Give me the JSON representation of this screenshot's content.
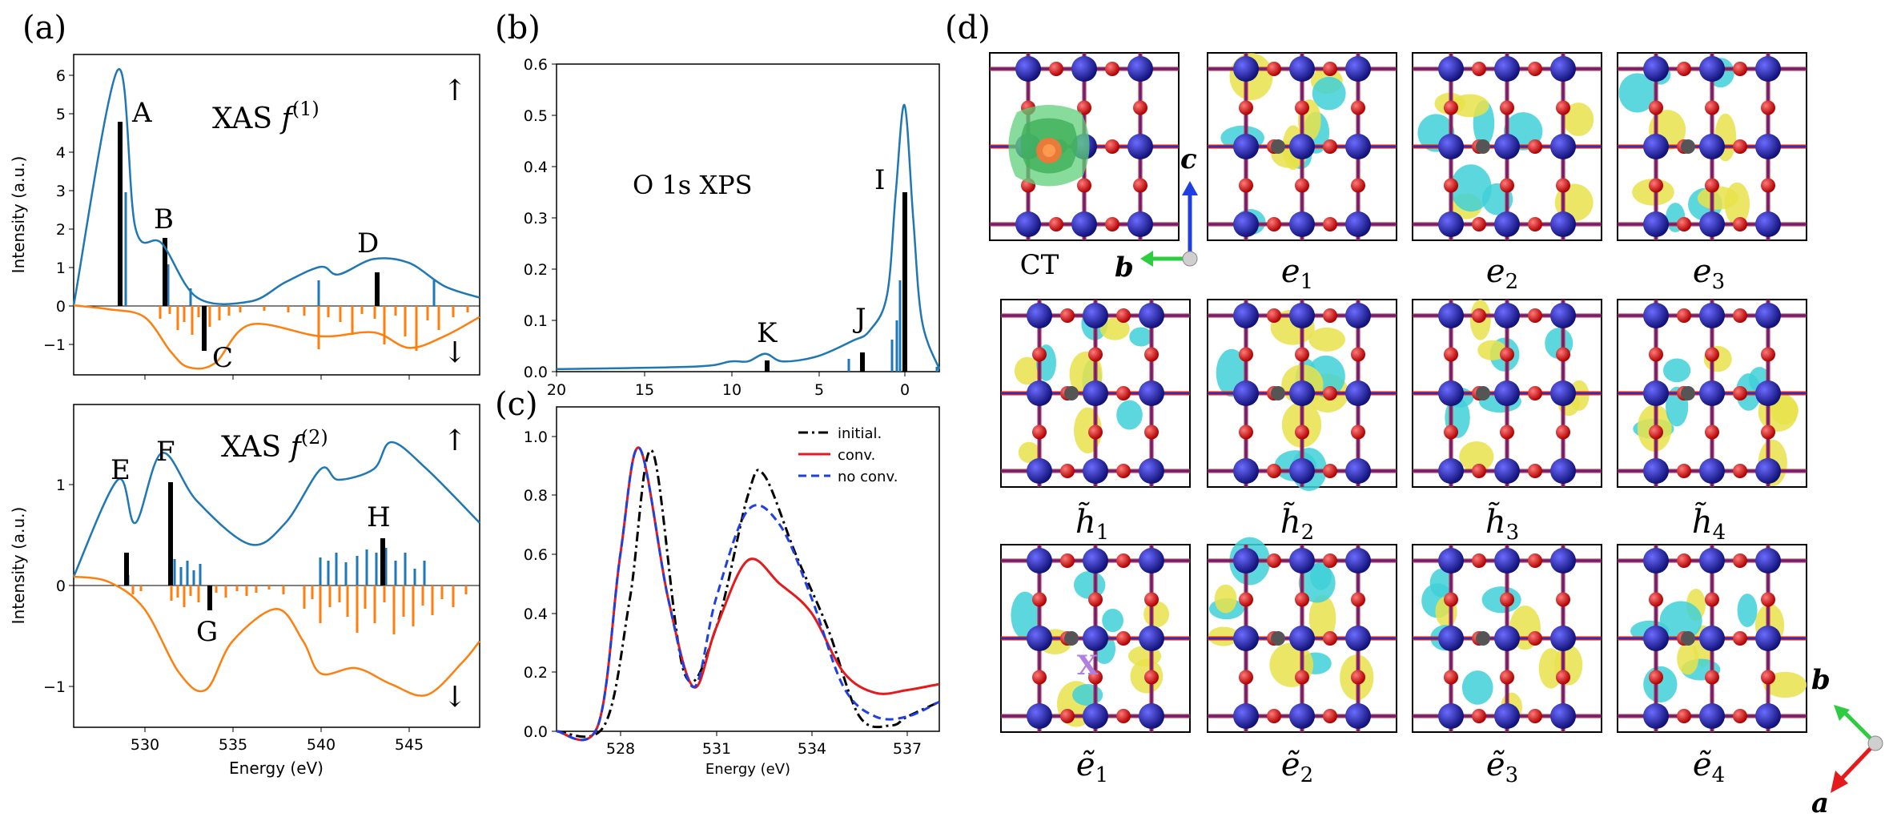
{
  "panel_labels": {
    "a": "(a)",
    "b": "(b)",
    "c": "(c)",
    "d": "(d)"
  },
  "panel_a_top": {
    "title": "XAS  f(1)",
    "arrow": "↑",
    "arrow_down": "↓",
    "peaks": [
      "A",
      "B",
      "C",
      "D"
    ],
    "ylabel": "Intensity (a.u.)",
    "yticks": [
      "6",
      "5",
      "4",
      "3",
      "2",
      "1",
      "0",
      "−1"
    ]
  },
  "panel_a_bottom": {
    "title": "XAS  f(2)",
    "arrow": "↑",
    "arrow_down": "↓",
    "peaks": [
      "E",
      "F",
      "G",
      "H"
    ],
    "ylabel": "Intensity (a.u.)",
    "yticks": [
      "1",
      "0",
      "−1"
    ],
    "xticks": [
      "530",
      "535",
      "540",
      "545"
    ],
    "xlabel": "Energy (eV)"
  },
  "panel_b": {
    "title": "O 1s XPS",
    "peaks": [
      "I",
      "J",
      "K"
    ],
    "xticks": [
      "20",
      "15",
      "10",
      "5",
      "0"
    ],
    "yticks": [
      "0.0",
      "0.1",
      "0.2",
      "0.3",
      "0.4",
      "0.5",
      "0.6"
    ]
  },
  "panel_c": {
    "xticks": [
      "528",
      "531",
      "534",
      "537"
    ],
    "yticks": [
      "0.0",
      "0.2",
      "0.4",
      "0.6",
      "0.8",
      "1.0"
    ],
    "xlabel": "Energy (eV)",
    "legend": [
      "initial.",
      "conv.",
      "no conv."
    ]
  },
  "panel_d": {
    "captions": [
      "CT",
      "e1",
      "e2",
      "e3",
      "h̃1",
      "h̃2",
      "h̃3",
      "h̃4",
      "ẽ1",
      "ẽ2",
      "ẽ3",
      "ẽ4"
    ],
    "axes_top": [
      "c",
      "b"
    ],
    "axes_bottom": [
      "b",
      "a"
    ],
    "marker": "X"
  },
  "colors": {
    "blue": "#1f77b4",
    "orange": "#ff7f0e",
    "red": "#e41a1c",
    "dashblue": "#1f3fe0",
    "black": "#000000"
  },
  "chart_data": [
    {
      "id": "a-top",
      "type": "line",
      "xlim": [
        526,
        549
      ],
      "ylim": [
        -1.8,
        6.5
      ],
      "series": [
        {
          "name": "",
          "x": [
            526,
            528.5,
            529.5,
            531,
            533,
            536,
            538,
            540,
            541,
            543,
            545,
            547,
            549
          ],
          "y": [
            0,
            6.1,
            2.0,
            1.6,
            0.2,
            0.1,
            0.6,
            1.0,
            0.8,
            1.2,
            1.1,
            0.5,
            0.2
          ]
        },
        {
          "name": "",
          "x": [
            526,
            528,
            530,
            531.5,
            532.5,
            534,
            536,
            540,
            543,
            545,
            547,
            549
          ],
          "y": [
            0,
            -0.1,
            -0.3,
            -1.2,
            -1.6,
            -1.5,
            -0.5,
            -0.8,
            -0.7,
            -1.1,
            -0.8,
            -0.3
          ]
        }
      ]
    },
    {
      "id": "a-bottom",
      "type": "line",
      "xlim": [
        526,
        549
      ],
      "ylim": [
        -1.4,
        1.6
      ],
      "series": [
        {
          "name": "",
          "x": [
            526,
            528.5,
            529.5,
            531,
            533,
            536,
            538,
            540,
            541,
            543,
            544,
            546,
            549
          ],
          "y": [
            0,
            0.9,
            0.5,
            1.15,
            0.7,
            0.3,
            0.5,
            1.0,
            0.9,
            1.0,
            1.25,
            1.0,
            0.5
          ]
        },
        {
          "name": "",
          "x": [
            526,
            528,
            530,
            532,
            533.5,
            535,
            537.5,
            539,
            540,
            542,
            544,
            546,
            548,
            549
          ],
          "y": [
            0,
            -0.05,
            -0.3,
            -0.9,
            -1.05,
            -0.6,
            -0.3,
            -0.6,
            -0.9,
            -0.85,
            -1.0,
            -1.1,
            -0.8,
            -0.6
          ]
        }
      ]
    },
    {
      "id": "b",
      "type": "line",
      "xlim": [
        20,
        -2
      ],
      "ylim": [
        0,
        0.6
      ],
      "series": [
        {
          "name": "",
          "x": [
            20,
            12,
            10,
            9,
            8,
            7,
            5,
            3,
            2,
            1,
            0.5,
            0,
            -0.5,
            -1,
            -2
          ],
          "y": [
            0.005,
            0.01,
            0.02,
            0.02,
            0.035,
            0.02,
            0.03,
            0.06,
            0.08,
            0.15,
            0.35,
            0.52,
            0.3,
            0.1,
            0.005
          ]
        }
      ]
    },
    {
      "id": "c",
      "type": "line",
      "xlim": [
        526,
        538
      ],
      "ylim": [
        0,
        1.1
      ],
      "series": [
        {
          "name": "initial.",
          "x": [
            526,
            527.5,
            528.3,
            529,
            530,
            531,
            532,
            532.5,
            533.5,
            534.5,
            535.5,
            536.5,
            537,
            538
          ],
          "y": [
            0,
            0.02,
            0.45,
            0.95,
            0.2,
            0.35,
            0.8,
            0.87,
            0.6,
            0.35,
            0.05,
            0.02,
            0.05,
            0.1
          ]
        },
        {
          "name": "conv.",
          "x": [
            526,
            527.3,
            528,
            528.6,
            529.5,
            530.3,
            531,
            532,
            533,
            534,
            535,
            536,
            537,
            538
          ],
          "y": [
            0,
            0.02,
            0.6,
            0.96,
            0.45,
            0.15,
            0.35,
            0.58,
            0.5,
            0.4,
            0.2,
            0.13,
            0.14,
            0.16
          ]
        },
        {
          "name": "no conv.",
          "x": [
            526,
            527.3,
            528,
            528.6,
            529.5,
            530.3,
            531,
            532,
            533,
            534,
            535,
            536,
            537,
            538
          ],
          "y": [
            0,
            0.02,
            0.6,
            0.96,
            0.45,
            0.15,
            0.45,
            0.75,
            0.7,
            0.45,
            0.15,
            0.05,
            0.05,
            0.1
          ]
        }
      ]
    }
  ]
}
